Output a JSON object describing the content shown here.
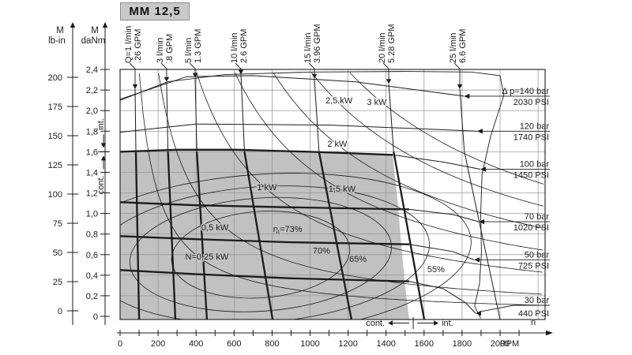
{
  "title": "MM 12,5",
  "axes": {
    "torque_lbin": {
      "name": "M",
      "unit": "lb-in",
      "ticks": [
        0,
        25,
        50,
        75,
        100,
        125,
        150,
        175,
        200
      ]
    },
    "torque_danm": {
      "name": "M",
      "unit": "daNm",
      "ticks": [
        0,
        0.2,
        0.4,
        0.6,
        0.8,
        1.0,
        1.2,
        1.4,
        1.6,
        1.8,
        2.0,
        2.2,
        2.4
      ]
    },
    "speed": {
      "unit": "RPM",
      "symbol": "n",
      "ticks": [
        0,
        200,
        400,
        600,
        800,
        1000,
        1200,
        1400,
        1600,
        1800,
        2000
      ],
      "minor_step_rpm": 100
    },
    "duty_left": {
      "upper_label": "int.",
      "lower_label": "cont.",
      "divider_danm": 1.6
    },
    "duty_bottom": {
      "left_label": "cont.",
      "right_label": "int.",
      "divider_rpm": 1543
    }
  },
  "colors": {
    "gray_zone": "#c1c1c1",
    "title_bg": "#c9c9c9",
    "grid": "#8d8d8d",
    "curve": "#1b1b1b",
    "text": "#1c1c1c"
  },
  "chart_data": {
    "type": "line",
    "title": "MM 12,5",
    "xlabel": "n (RPM)",
    "ylabel": "M (daNm / lb-in)",
    "xlim_rpm": [
      0,
      2237
    ],
    "ylim_danm": [
      0,
      2.4
    ],
    "ylim_lbin": [
      0,
      200
    ],
    "grid": {
      "x_step_rpm": 200,
      "y_step_danm": 0.2
    },
    "continuous_zone": {
      "max_torque_danm": 1.6,
      "max_speed_rpm": 1543,
      "points": [
        [
          0,
          -0.031
        ],
        [
          0,
          1.601
        ],
        [
          300,
          1.617
        ],
        [
          615,
          1.617
        ],
        [
          1000,
          1.6
        ],
        [
          1435,
          1.572
        ],
        [
          1462,
          1.1
        ],
        [
          1480,
          0.7
        ],
        [
          1500,
          0.3
        ],
        [
          1522,
          -0.031
        ]
      ]
    },
    "envelope": {
      "points": [
        [
          0,
          2.1
        ],
        [
          250,
          2.28
        ],
        [
          550,
          2.35
        ],
        [
          1000,
          2.375
        ],
        [
          1500,
          2.38
        ],
        [
          1850,
          2.375
        ],
        [
          2000,
          2.34
        ],
        [
          2020,
          2.15
        ],
        [
          1950,
          1.75
        ],
        [
          1905,
          1.38
        ],
        [
          1898,
          1.0
        ],
        [
          1902,
          0.62
        ],
        [
          1892,
          0.32
        ],
        [
          1866,
          0.1
        ],
        [
          1898,
          -0.02
        ]
      ]
    },
    "flow_lines": [
      {
        "label": "Q=1 l/min",
        "gpm_label": ".26 GPM",
        "lpm": 1,
        "top": [
          79,
          2.21
        ],
        "mid": [
          83,
          1.6
        ],
        "bottom": [
          100,
          -0.031
        ],
        "thick": true
      },
      {
        "label": "3 l/min",
        "gpm_label": ".8 GPM",
        "lpm": 3,
        "top": [
          245,
          2.28
        ],
        "mid": [
          252,
          1.6
        ],
        "bottom": [
          291,
          -0.031
        ],
        "thick": true
      },
      {
        "label": "5 l/min",
        "gpm_label": "1.3 GPM",
        "lpm": 5,
        "top": [
          395,
          2.32
        ],
        "mid": [
          404,
          1.6
        ],
        "bottom": [
          457,
          -0.031
        ],
        "thick": true
      },
      {
        "label": "10 l/min",
        "gpm_label": "2.6 GPM",
        "lpm": 10,
        "top": [
          636,
          2.35
        ],
        "mid": [
          655,
          1.6
        ],
        "bottom": [
          803,
          -0.031
        ],
        "thick": true
      },
      {
        "label": "15 l/min",
        "gpm_label": "3.96 GPM",
        "lpm": 15,
        "top": [
          1023,
          2.31
        ],
        "mid": [
          1047,
          1.6
        ],
        "bottom": [
          1218,
          -0.031
        ],
        "thick": true
      },
      {
        "label": "20 l/min",
        "gpm_label": "5.28 GPM",
        "lpm": 20,
        "top": [
          1414,
          2.26
        ],
        "mid": [
          1440,
          1.6
        ],
        "bottom": [
          1601,
          -0.031
        ],
        "thick": true
      },
      {
        "label": "25 l/min",
        "gpm_label": "6.6 GPM",
        "lpm": 25,
        "top": [
          1788,
          2.21
        ],
        "mid": [
          1812,
          1.6
        ],
        "bottom": [
          2000,
          -0.031
        ],
        "thick": false
      }
    ],
    "pressure_curves": [
      {
        "bar": 140,
        "label": "Δ p=140 bar",
        "psi_label": "2030 PSI",
        "bent_leader": false,
        "thick_points": [],
        "thin_points": [
          [
            0,
            2.11
          ],
          [
            350,
            2.33
          ],
          [
            700,
            2.34
          ],
          [
            1239,
            2.28
          ],
          [
            1810,
            2.14
          ]
        ]
      },
      {
        "bar": 120,
        "label": "120 bar",
        "psi_label": "1740 PSI",
        "bent_leader": false,
        "thick_points": [],
        "thin_points": [
          [
            0,
            1.79
          ],
          [
            400,
            1.87
          ],
          [
            1100,
            1.86
          ],
          [
            1879,
            1.8
          ]
        ]
      },
      {
        "bar": 100,
        "label": "100 bar",
        "psi_label": "1450 PSI",
        "bent_leader": false,
        "thick_points": [
          [
            0,
            1.6
          ],
          [
            300,
            1.62
          ],
          [
            615,
            1.62
          ],
          [
            1000,
            1.6
          ],
          [
            1435,
            1.57
          ]
        ],
        "thin_points": [
          [
            1435,
            1.57
          ],
          [
            1700,
            1.5
          ],
          [
            1896,
            1.43
          ]
        ]
      },
      {
        "bar": 70,
        "label": "70 bar",
        "psi_label": "1020 PSI",
        "bent_leader": false,
        "thick_points": [
          [
            0,
            1.11
          ],
          [
            400,
            1.08
          ],
          [
            900,
            1.06
          ],
          [
            1522,
            1.04
          ]
        ],
        "thin_points": [
          [
            1522,
            1.04
          ],
          [
            1750,
            0.99
          ],
          [
            1888,
            0.92
          ]
        ]
      },
      {
        "bar": 50,
        "label": "50 bar",
        "psi_label": "725 PSI",
        "bent_leader": false,
        "thick_points": [
          [
            0,
            0.78
          ],
          [
            400,
            0.75
          ],
          [
            900,
            0.72
          ],
          [
            1522,
            0.7
          ]
        ],
        "thin_points": [
          [
            1522,
            0.7
          ],
          [
            1750,
            0.63
          ],
          [
            1863,
            0.55
          ]
        ]
      },
      {
        "bar": 30,
        "label": "30 bar",
        "psi_label": "440 PSI",
        "bent_leader": true,
        "thick_points": [
          [
            0,
            0.45
          ],
          [
            400,
            0.41
          ],
          [
            900,
            0.37
          ],
          [
            1522,
            0.34
          ]
        ],
        "thin_points": [
          [
            1522,
            0.34
          ],
          [
            1700,
            0.27
          ],
          [
            1820,
            0.13
          ],
          [
            1871,
            0.03
          ]
        ]
      }
    ],
    "power_curves": {
      "torque_speed_constant_danm_rpm_per_kw": 955,
      "values_kw": [
        0.25,
        0.5,
        1,
        1.5,
        2,
        2.5,
        3
      ]
    },
    "power_labels": [
      {
        "text": "2,5 kW",
        "rpm": 1152,
        "danm": 2.101,
        "halo": "white"
      },
      {
        "text": "3 kW",
        "rpm": 1351,
        "danm": 2.086,
        "halo": "white"
      },
      {
        "text": "2 kW",
        "rpm": 1143,
        "danm": 1.679,
        "halo": "white"
      },
      {
        "text": "1 kW",
        "rpm": 773,
        "danm": 1.258,
        "halo": "gray"
      },
      {
        "text": "1,5 kW",
        "rpm": 1168,
        "danm": 1.242,
        "halo": "gray"
      },
      {
        "text": "0,5 kW",
        "rpm": 499,
        "danm": 0.867,
        "halo": "gray"
      },
      {
        "text": "N=0,25 kW",
        "rpm": 457,
        "danm": 0.583,
        "halo": "gray"
      }
    ],
    "efficiency": {
      "center": {
        "rpm": 740,
        "danm": 0.6
      },
      "tilt_deg": -4,
      "contours": [
        {
          "pct": 73,
          "rx_rpm": 470,
          "ry_danm": 0.42
        },
        {
          "pct": 70,
          "rx_rpm": 690,
          "ry_danm": 0.55
        },
        {
          "pct": 65,
          "rx_rpm": 890,
          "ry_danm": 0.66
        },
        {
          "pct": 55,
          "rx_rpm": 1110,
          "ry_danm": 0.78
        }
      ],
      "labels": [
        {
          "text": "=73%",
          "eta_prefix": true,
          "rpm": 882,
          "danm": 0.851,
          "halo": "gray"
        },
        {
          "text": "70%",
          "eta_prefix": false,
          "rpm": 1060,
          "danm": 0.64,
          "halo": "gray"
        },
        {
          "text": "65%",
          "eta_prefix": false,
          "rpm": 1252,
          "danm": 0.56,
          "halo": "gray"
        },
        {
          "text": "55%",
          "eta_prefix": false,
          "rpm": 1663,
          "danm": 0.46,
          "halo": "white"
        }
      ]
    }
  }
}
